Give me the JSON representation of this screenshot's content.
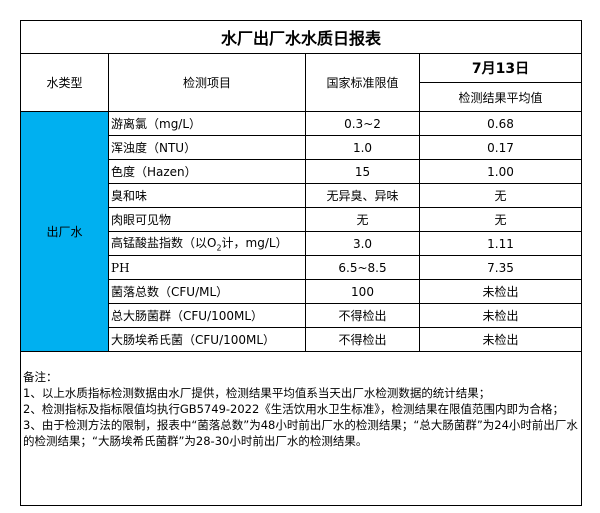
{
  "title": "水厂出厂水水质日报表",
  "header": {
    "water_type": "水类型",
    "item": "检测项目",
    "standard": "国家标准限值",
    "date": "7月13日",
    "result": "检测结果平均值"
  },
  "water_type_value": "出厂水",
  "rows": [
    {
      "item": "游离氯（mg/L）",
      "standard": "0.3~2",
      "result": "0.68"
    },
    {
      "item": "浑浊度（NTU）",
      "standard": "1.0",
      "result": "0.17"
    },
    {
      "item": "色度（Hazen）",
      "standard": "15",
      "result": "1.00"
    },
    {
      "item": "臭和味",
      "standard": "无异臭、异味",
      "result": "无"
    },
    {
      "item": "肉眼可见物",
      "standard": "无",
      "result": "无"
    },
    {
      "item_prefix": "高锰酸盐指数（以O",
      "item_sub": "2",
      "item_suffix": "计，mg/L）",
      "standard": "3.0",
      "result": "1.11"
    },
    {
      "item": "PH",
      "standard": "6.5~8.5",
      "result": "7.35"
    },
    {
      "item": "菌落总数（CFU/ML）",
      "standard": "100",
      "result": "未检出"
    },
    {
      "item": "总大肠菌群（CFU/100ML）",
      "standard": "不得检出",
      "result": "未检出"
    },
    {
      "item": "大肠埃希氏菌（CFU/100ML）",
      "standard": "不得检出",
      "result": "未检出"
    }
  ],
  "notes": {
    "heading": "备注：",
    "lines": [
      "1、以上水质指标检测数据由水厂提供，检测结果平均值系当天出厂水检测数据的统计结果；",
      "2、检测指标及指标限值均执行GB5749-2022《生活饮用水卫生标准》，检测结果在限值范围内即为合格；",
      "3、由于检测方法的限制，报表中“菌落总数”为48小时前出厂水的检测结果；“总大肠菌群”为24小时前出厂水的检测结果；“大肠埃希氏菌群”为28-30小时前出厂水的检测结果。"
    ]
  },
  "colors": {
    "water_type_cell": "#00b0f0"
  }
}
